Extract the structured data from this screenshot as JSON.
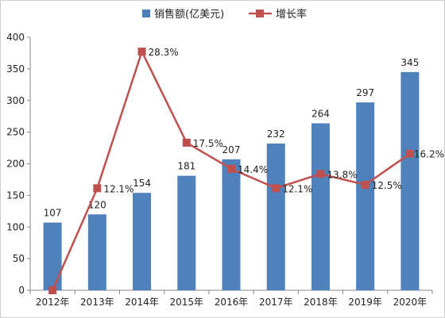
{
  "chart_data": {
    "type": "bar",
    "categories": [
      "2012年",
      "2013年",
      "2014年",
      "2015年",
      "2016年",
      "2017年",
      "2018年",
      "2019年",
      "2020年"
    ],
    "series": [
      {
        "name": "销售额(亿美元)",
        "type": "bar",
        "color": "#4f81bd",
        "values": [
          107,
          120,
          154,
          181,
          207,
          232,
          264,
          297,
          345
        ],
        "labels": [
          "107",
          "120",
          "154",
          "181",
          "207",
          "232",
          "264",
          "297",
          "345"
        ]
      },
      {
        "name": "增长率",
        "type": "line",
        "color": "#c0504d",
        "values": [
          0,
          12.1,
          28.3,
          17.5,
          14.4,
          12.1,
          13.8,
          12.5,
          16.2
        ],
        "labels": [
          "",
          "12.1%",
          "28.3%",
          "17.5%",
          "14.4%",
          "12.1%",
          "13.8%",
          "12.5%",
          "16.2%"
        ]
      }
    ],
    "ylim": [
      0,
      400
    ],
    "yticks": [
      "0",
      "50",
      "100",
      "150",
      "200",
      "250",
      "300",
      "350",
      "400"
    ],
    "grid": false,
    "legend": "top"
  }
}
